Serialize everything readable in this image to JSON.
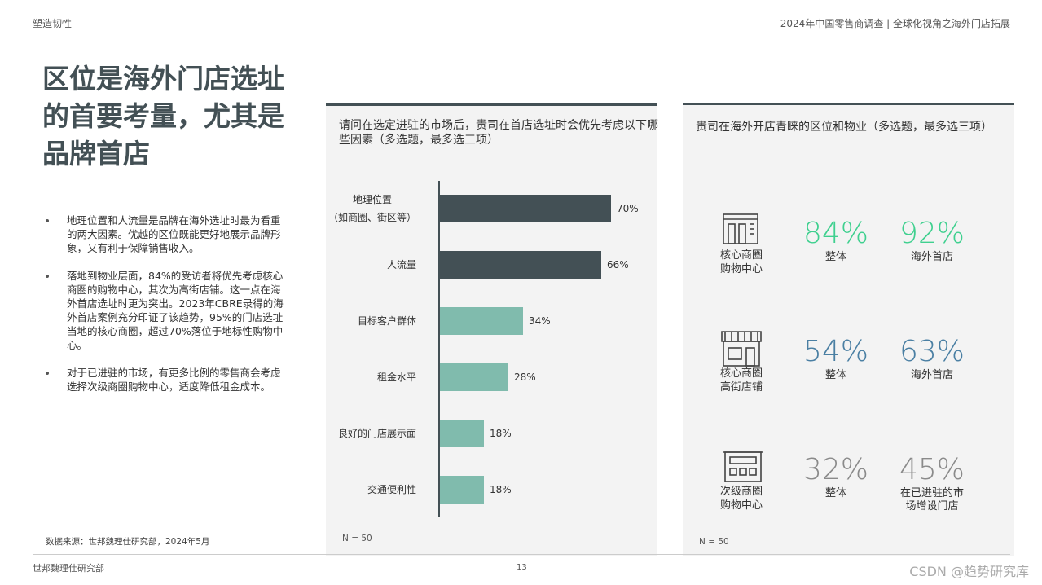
{
  "header": {
    "left": "塑造韧性",
    "right": "2024年中国零售商调查 | 全球化视角之海外门店拓展"
  },
  "title_lines": [
    "区位是海外门店选址",
    "的首要考量，尤其是",
    "品牌首店"
  ],
  "bullets": [
    "地理位置和人流量是品牌在海外选址时最为看重的两大因素。优越的区位既能更好地展示品牌形象，又有利于保障销售收入。",
    "落地到物业层面，84%的受访者将优先考虑核心商圈的购物中心，其次为高街店铺。这一点在海外首店选址时更为突出。2023年CBRE录得的海外首店案例充分印证了该趋势，95%的门店选址当地的核心商圈，超过70%落位于地标性购物中心。",
    "对于已进驻的市场，有更多比例的零售商会考虑选择次级商圈购物中心，适度降低租金成本。"
  ],
  "source": "数据来源：世邦魏理仕研究部，2024年5月",
  "chart_data": {
    "type": "bar",
    "orientation": "horizontal",
    "title": "请问在选定进驻的市场后，贵司在首店选址时会优先考虑以下哪些因素（多选题，最多选三项）",
    "categories": [
      "地理位置\n（如商圈、街区等）",
      "人流量",
      "目标客户群体",
      "租金水平",
      "良好的门店展示面",
      "交通便利性"
    ],
    "values": [
      70,
      66,
      34,
      28,
      18,
      18
    ],
    "value_labels": [
      "70%",
      "66%",
      "34%",
      "28%",
      "18%",
      "18%"
    ],
    "colors": [
      "#435055",
      "#435055",
      "#80bbad",
      "#80bbad",
      "#80bbad",
      "#80bbad"
    ],
    "footnote": "N = 50"
  },
  "stats_panel": {
    "title": "贵司在海外开店青睐的区位和物业（多选题，最多选三项）",
    "rows": [
      {
        "label": "核心商圈\n购物中心",
        "color": "#3fd08f",
        "items": [
          {
            "value": "84%",
            "label": "整体"
          },
          {
            "value": "92%",
            "label": "海外首店"
          }
        ]
      },
      {
        "label": "核心商圈\n高街店铺",
        "color": "#4a7fa3",
        "items": [
          {
            "value": "54%",
            "label": "整体"
          },
          {
            "value": "63%",
            "label": "海外首店"
          }
        ]
      },
      {
        "label": "次级商圈\n购物中心",
        "color": "#8a8a8a",
        "items": [
          {
            "value": "32%",
            "label": "整体"
          },
          {
            "value": "45%",
            "label": "在已进驻的市\n场增设门店"
          }
        ]
      }
    ],
    "footnote": "N = 50"
  },
  "footer": {
    "left": "世邦魏理仕研究部",
    "page": "13",
    "watermark": "CSDN @趋势研究库"
  }
}
